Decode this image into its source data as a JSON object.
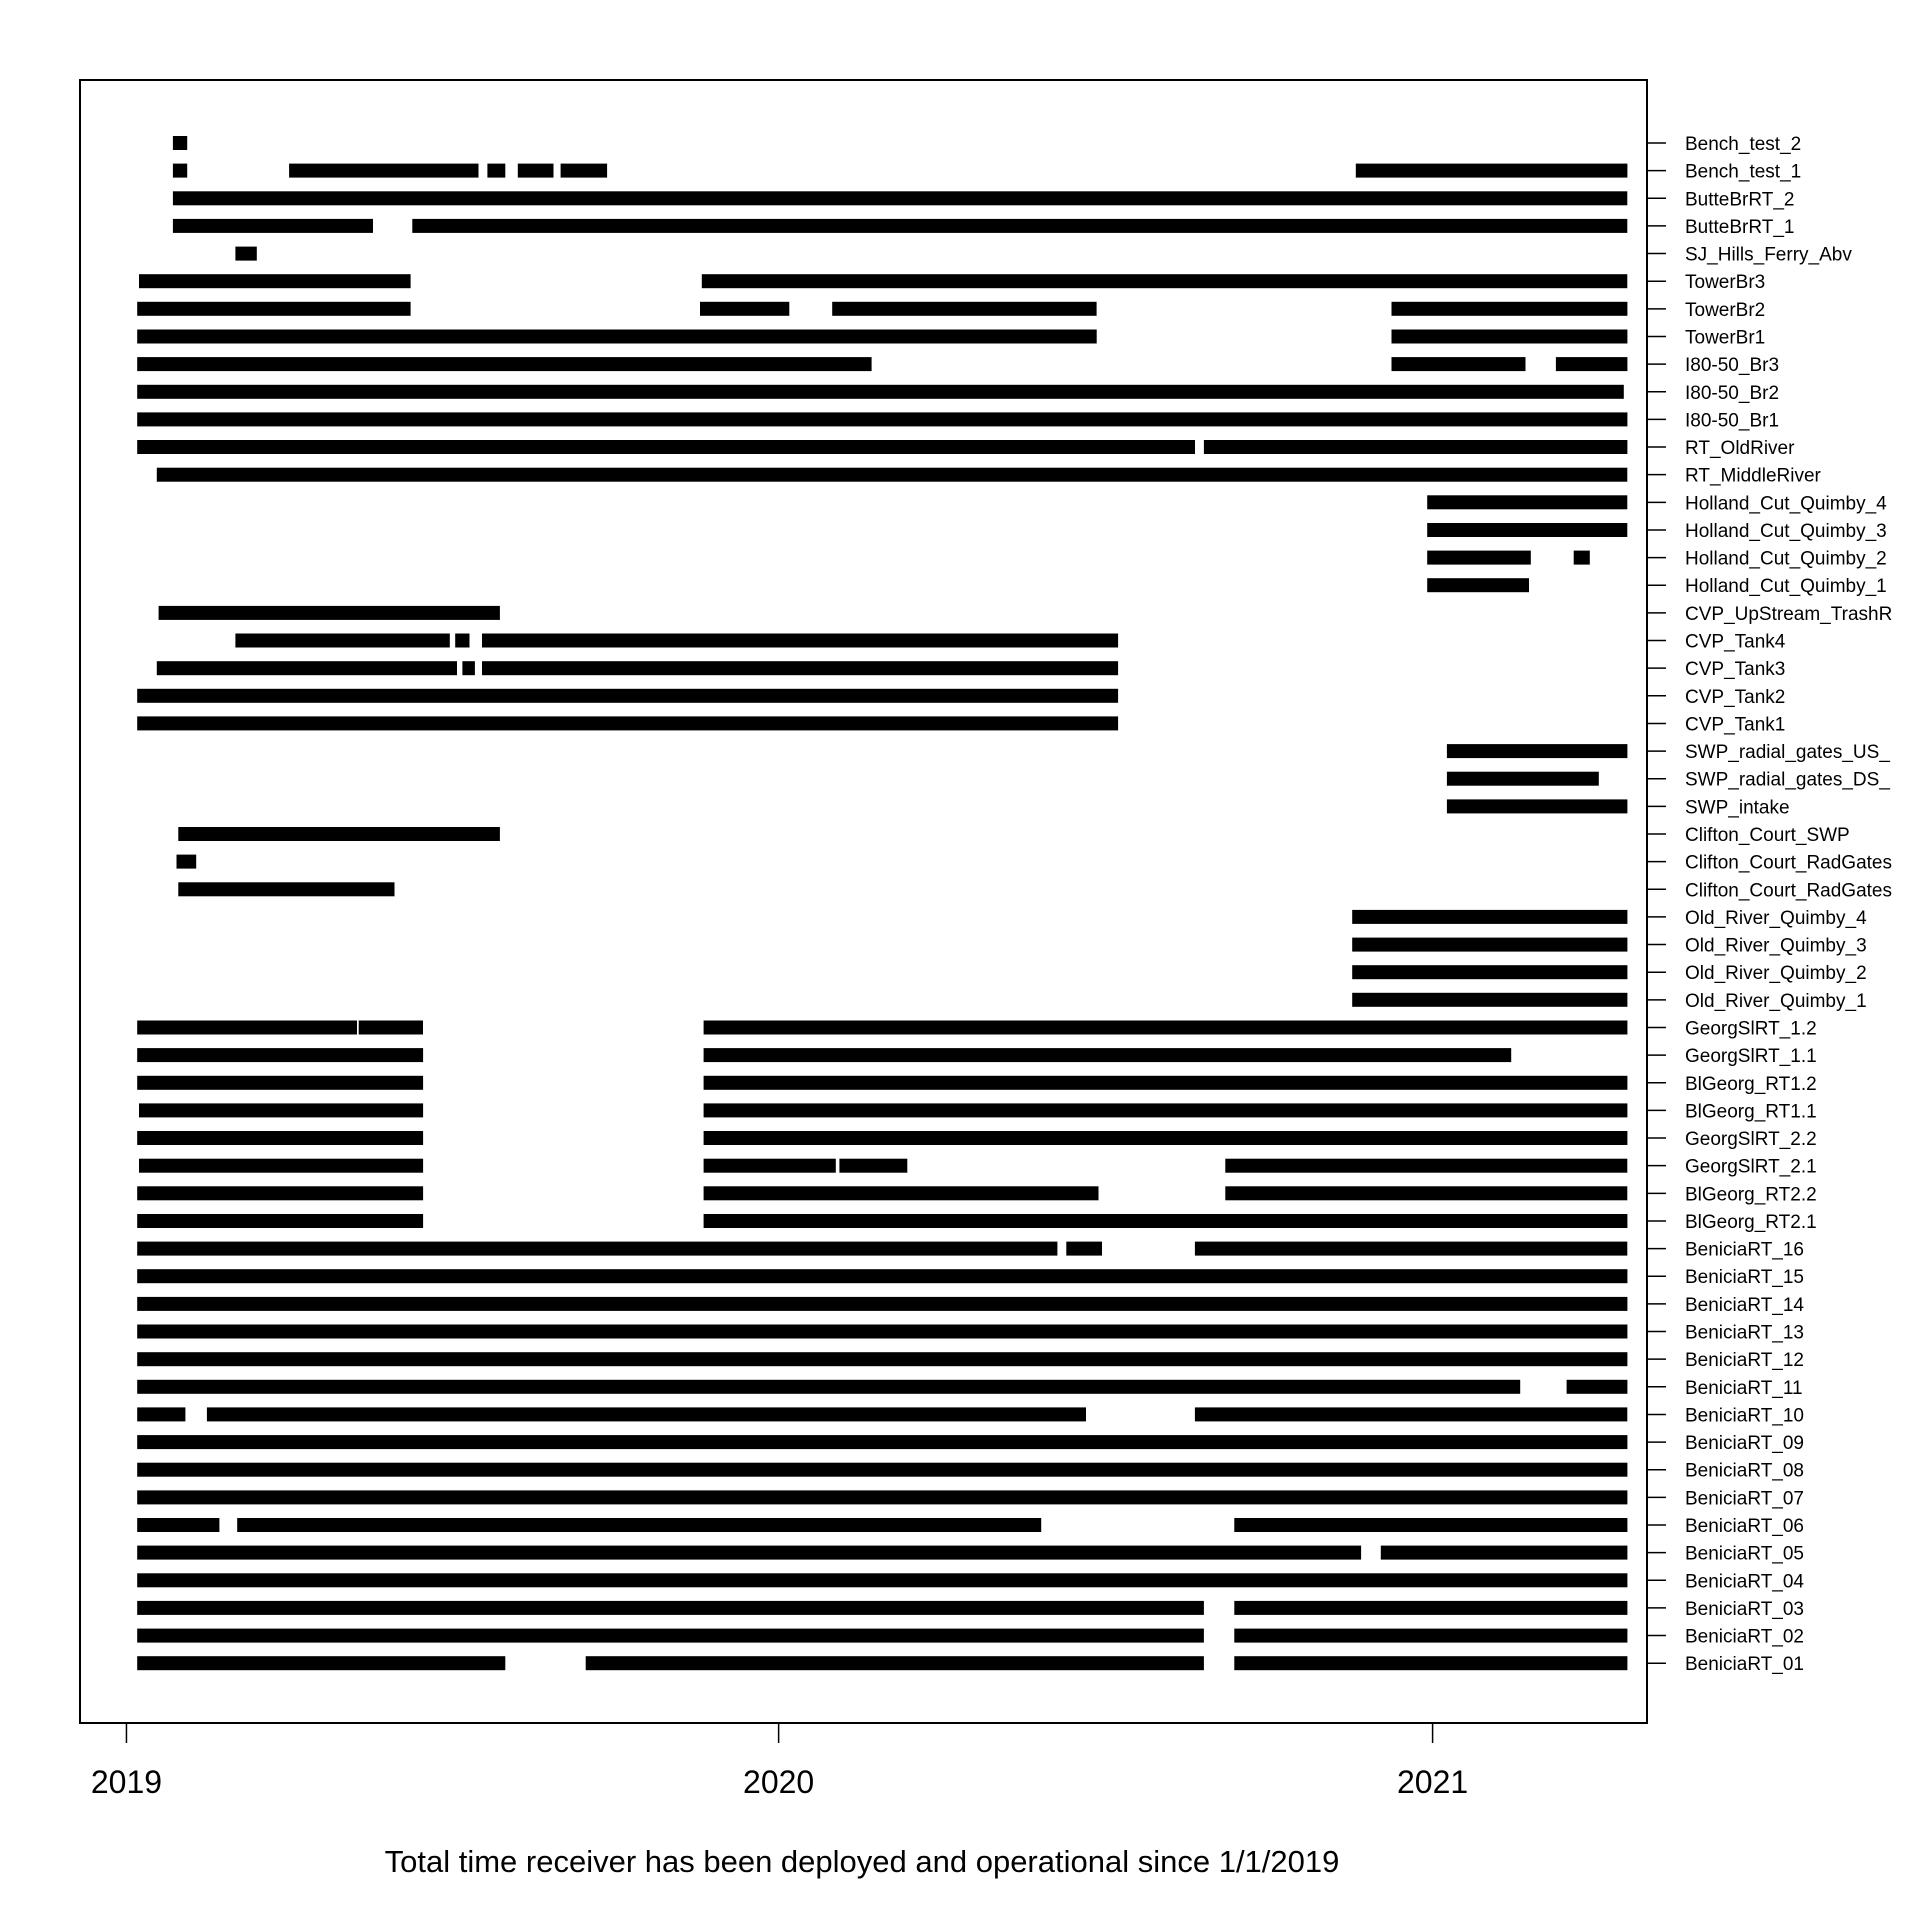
{
  "chart_data": {
    "type": "timeline",
    "title": "",
    "xlabel": "Total time receiver has been deployed and operational since 1/1/2019",
    "ylabel": "",
    "x_ticks": [
      "2019",
      "2020",
      "2021"
    ],
    "xlim": [
      "2018-12-06",
      "2021-05-01"
    ],
    "grid": false,
    "legend": "none",
    "bar_color": "#000000",
    "receivers": [
      {
        "name": "Bench_test_2",
        "intervals": [
          [
            "2019-01-27",
            "2019-02-04"
          ]
        ]
      },
      {
        "name": "Bench_test_1",
        "intervals": [
          [
            "2019-01-27",
            "2019-02-04"
          ],
          [
            "2019-04-02",
            "2019-07-17"
          ],
          [
            "2019-07-22",
            "2019-08-01"
          ],
          [
            "2019-08-08",
            "2019-08-28"
          ],
          [
            "2019-09-01",
            "2019-09-27"
          ],
          [
            "2020-11-19",
            "2021-04-20"
          ]
        ]
      },
      {
        "name": "ButteBrRT_2",
        "intervals": [
          [
            "2019-01-27",
            "2021-04-20"
          ]
        ]
      },
      {
        "name": "ButteBrRT_1",
        "intervals": [
          [
            "2019-01-27",
            "2019-05-19"
          ],
          [
            "2019-06-10",
            "2021-04-20"
          ]
        ]
      },
      {
        "name": "SJ_Hills_Ferry_Abv",
        "intervals": [
          [
            "2019-03-03",
            "2019-03-15"
          ]
        ]
      },
      {
        "name": "TowerBr3",
        "intervals": [
          [
            "2019-01-08",
            "2019-06-09"
          ],
          [
            "2019-11-19",
            "2021-04-20"
          ]
        ]
      },
      {
        "name": "TowerBr2",
        "intervals": [
          [
            "2019-01-07",
            "2019-06-09"
          ],
          [
            "2019-11-18",
            "2020-01-07"
          ],
          [
            "2020-01-31",
            "2020-06-27"
          ],
          [
            "2020-12-09",
            "2021-04-20"
          ]
        ]
      },
      {
        "name": "TowerBr1",
        "intervals": [
          [
            "2019-01-07",
            "2020-06-27"
          ],
          [
            "2020-12-09",
            "2021-04-20"
          ]
        ]
      },
      {
        "name": "I80-50_Br3",
        "intervals": [
          [
            "2019-01-07",
            "2020-02-22"
          ],
          [
            "2020-12-09",
            "2021-02-22"
          ],
          [
            "2021-03-11",
            "2021-04-20"
          ]
        ]
      },
      {
        "name": "I80-50_Br2",
        "intervals": [
          [
            "2019-01-07",
            "2021-04-18"
          ]
        ]
      },
      {
        "name": "I80-50_Br1",
        "intervals": [
          [
            "2019-01-07",
            "2021-04-20"
          ]
        ]
      },
      {
        "name": "RT_OldRiver",
        "intervals": [
          [
            "2019-01-07",
            "2020-08-21"
          ],
          [
            "2020-08-26",
            "2021-04-20"
          ]
        ]
      },
      {
        "name": "RT_MiddleRiver",
        "intervals": [
          [
            "2019-01-18",
            "2021-04-20"
          ]
        ]
      },
      {
        "name": "Holland_Cut_Quimby_4",
        "intervals": [
          [
            "2020-12-29",
            "2021-04-20"
          ]
        ]
      },
      {
        "name": "Holland_Cut_Quimby_3",
        "intervals": [
          [
            "2020-12-29",
            "2021-04-20"
          ]
        ]
      },
      {
        "name": "Holland_Cut_Quimby_2",
        "intervals": [
          [
            "2020-12-29",
            "2021-02-25"
          ],
          [
            "2021-03-21",
            "2021-03-30"
          ]
        ]
      },
      {
        "name": "Holland_Cut_Quimby_1",
        "intervals": [
          [
            "2020-12-29",
            "2021-02-24"
          ]
        ]
      },
      {
        "name": "CVP_UpStream_TrashR",
        "intervals": [
          [
            "2019-01-19",
            "2019-07-29"
          ]
        ]
      },
      {
        "name": "CVP_Tank4",
        "intervals": [
          [
            "2019-03-03",
            "2019-07-01"
          ],
          [
            "2019-07-04",
            "2019-07-12"
          ],
          [
            "2019-07-19",
            "2020-07-09"
          ]
        ]
      },
      {
        "name": "CVP_Tank3",
        "intervals": [
          [
            "2019-01-18",
            "2019-07-05"
          ],
          [
            "2019-07-08",
            "2019-07-15"
          ],
          [
            "2019-07-19",
            "2020-07-09"
          ]
        ]
      },
      {
        "name": "CVP_Tank2",
        "intervals": [
          [
            "2019-01-07",
            "2020-07-09"
          ]
        ]
      },
      {
        "name": "CVP_Tank1",
        "intervals": [
          [
            "2019-01-07",
            "2020-07-09"
          ]
        ]
      },
      {
        "name": "SWP_radial_gates_US_",
        "intervals": [
          [
            "2021-01-09",
            "2021-04-20"
          ]
        ]
      },
      {
        "name": "SWP_radial_gates_DS_",
        "intervals": [
          [
            "2021-01-09",
            "2021-04-04"
          ]
        ]
      },
      {
        "name": "SWP_intake",
        "intervals": [
          [
            "2021-01-09",
            "2021-04-20"
          ]
        ]
      },
      {
        "name": "Clifton_Court_SWP",
        "intervals": [
          [
            "2019-01-30",
            "2019-07-29"
          ]
        ]
      },
      {
        "name": "Clifton_Court_RadGates",
        "intervals": [
          [
            "2019-01-29",
            "2019-02-09"
          ]
        ]
      },
      {
        "name": "Clifton_Court_RadGates",
        "intervals": [
          [
            "2019-01-30",
            "2019-05-31"
          ]
        ]
      },
      {
        "name": "Old_River_Quimby_4",
        "intervals": [
          [
            "2020-11-17",
            "2021-04-20"
          ]
        ]
      },
      {
        "name": "Old_River_Quimby_3",
        "intervals": [
          [
            "2020-11-17",
            "2021-04-20"
          ]
        ]
      },
      {
        "name": "Old_River_Quimby_2",
        "intervals": [
          [
            "2020-11-17",
            "2021-04-20"
          ]
        ]
      },
      {
        "name": "Old_River_Quimby_1",
        "intervals": [
          [
            "2020-11-17",
            "2021-04-20"
          ]
        ]
      },
      {
        "name": "GeorgSlRT_1.2",
        "intervals": [
          [
            "2019-01-07",
            "2019-05-10"
          ],
          [
            "2019-05-11",
            "2019-06-16"
          ],
          [
            "2019-11-20",
            "2021-04-20"
          ]
        ]
      },
      {
        "name": "GeorgSlRT_1.1",
        "intervals": [
          [
            "2019-01-07",
            "2019-06-16"
          ],
          [
            "2019-11-20",
            "2021-02-14"
          ]
        ]
      },
      {
        "name": "BlGeorg_RT1.2",
        "intervals": [
          [
            "2019-01-07",
            "2019-06-16"
          ],
          [
            "2019-11-20",
            "2021-04-20"
          ]
        ]
      },
      {
        "name": "BlGeorg_RT1.1",
        "intervals": [
          [
            "2019-01-08",
            "2019-06-16"
          ],
          [
            "2019-11-20",
            "2021-04-20"
          ]
        ]
      },
      {
        "name": "GeorgSlRT_2.2",
        "intervals": [
          [
            "2019-01-07",
            "2019-06-16"
          ],
          [
            "2019-11-20",
            "2021-04-20"
          ]
        ]
      },
      {
        "name": "GeorgSlRT_2.1",
        "intervals": [
          [
            "2019-01-08",
            "2019-06-16"
          ],
          [
            "2019-11-20",
            "2020-02-02"
          ],
          [
            "2020-02-04",
            "2020-03-13"
          ],
          [
            "2020-09-07",
            "2021-04-20"
          ]
        ]
      },
      {
        "name": "BlGeorg_RT2.2",
        "intervals": [
          [
            "2019-01-07",
            "2019-06-16"
          ],
          [
            "2019-11-20",
            "2020-06-28"
          ],
          [
            "2020-09-07",
            "2021-04-20"
          ]
        ]
      },
      {
        "name": "BlGeorg_RT2.1",
        "intervals": [
          [
            "2019-01-07",
            "2019-06-16"
          ],
          [
            "2019-11-20",
            "2021-04-20"
          ]
        ]
      },
      {
        "name": "BeniciaRT_16",
        "intervals": [
          [
            "2019-01-07",
            "2020-06-05"
          ],
          [
            "2020-06-10",
            "2020-06-30"
          ],
          [
            "2020-08-21",
            "2021-04-20"
          ]
        ]
      },
      {
        "name": "BeniciaRT_15",
        "intervals": [
          [
            "2019-01-07",
            "2021-04-20"
          ]
        ]
      },
      {
        "name": "BeniciaRT_14",
        "intervals": [
          [
            "2019-01-07",
            "2021-04-20"
          ]
        ]
      },
      {
        "name": "BeniciaRT_13",
        "intervals": [
          [
            "2019-01-07",
            "2021-04-20"
          ]
        ]
      },
      {
        "name": "BeniciaRT_12",
        "intervals": [
          [
            "2019-01-07",
            "2021-04-20"
          ]
        ]
      },
      {
        "name": "BeniciaRT_11",
        "intervals": [
          [
            "2019-01-07",
            "2021-02-19"
          ],
          [
            "2021-03-17",
            "2021-04-20"
          ]
        ]
      },
      {
        "name": "BeniciaRT_10",
        "intervals": [
          [
            "2019-01-07",
            "2019-02-03"
          ],
          [
            "2019-02-15",
            "2020-06-21"
          ],
          [
            "2020-08-21",
            "2021-04-20"
          ]
        ]
      },
      {
        "name": "BeniciaRT_09",
        "intervals": [
          [
            "2019-01-07",
            "2021-04-20"
          ]
        ]
      },
      {
        "name": "BeniciaRT_08",
        "intervals": [
          [
            "2019-01-07",
            "2021-04-20"
          ]
        ]
      },
      {
        "name": "BeniciaRT_07",
        "intervals": [
          [
            "2019-01-07",
            "2021-04-20"
          ]
        ]
      },
      {
        "name": "BeniciaRT_06",
        "intervals": [
          [
            "2019-01-07",
            "2019-02-22"
          ],
          [
            "2019-03-04",
            "2020-05-27"
          ],
          [
            "2020-09-12",
            "2021-04-20"
          ]
        ]
      },
      {
        "name": "BeniciaRT_05",
        "intervals": [
          [
            "2019-01-07",
            "2020-11-22"
          ],
          [
            "2020-12-03",
            "2021-04-20"
          ]
        ]
      },
      {
        "name": "BeniciaRT_04",
        "intervals": [
          [
            "2019-01-07",
            "2021-04-20"
          ]
        ]
      },
      {
        "name": "BeniciaRT_03",
        "intervals": [
          [
            "2019-01-07",
            "2020-08-26"
          ],
          [
            "2020-09-12",
            "2021-04-20"
          ]
        ]
      },
      {
        "name": "BeniciaRT_02",
        "intervals": [
          [
            "2019-01-07",
            "2020-08-26"
          ],
          [
            "2020-09-12",
            "2021-04-20"
          ]
        ]
      },
      {
        "name": "BeniciaRT_01",
        "intervals": [
          [
            "2019-01-07",
            "2019-08-01"
          ],
          [
            "2019-09-15",
            "2020-08-26"
          ],
          [
            "2020-09-12",
            "2021-04-20"
          ]
        ]
      }
    ]
  }
}
